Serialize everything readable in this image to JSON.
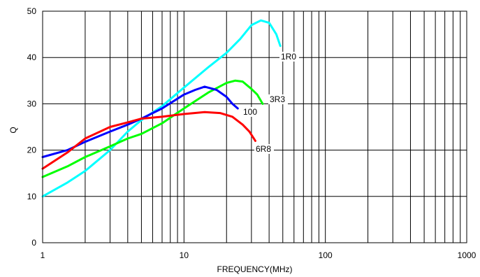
{
  "chart_data": {
    "type": "line",
    "xlabel": "FREQUENCY(MHz)",
    "ylabel": "Q",
    "xscale": "log",
    "xlim": [
      1,
      1000
    ],
    "ylim": [
      0,
      50
    ],
    "x_ticks": [
      "1",
      "10",
      "100",
      "1000"
    ],
    "y_ticks": [
      "0",
      "10",
      "20",
      "30",
      "40",
      "50"
    ],
    "grid": true,
    "series": [
      {
        "name": "1R0",
        "color": "#00ffff",
        "points": [
          [
            1,
            10
          ],
          [
            1.5,
            13
          ],
          [
            2,
            15.5
          ],
          [
            3,
            20
          ],
          [
            4,
            24
          ],
          [
            5,
            26.5
          ],
          [
            7,
            29.5
          ],
          [
            10,
            33.5
          ],
          [
            15,
            38
          ],
          [
            20,
            41
          ],
          [
            25,
            44
          ],
          [
            30,
            47
          ],
          [
            35,
            48
          ],
          [
            40,
            47.5
          ],
          [
            45,
            45
          ],
          [
            48,
            42.5
          ]
        ]
      },
      {
        "name": "3R3",
        "color": "#00ff00",
        "points": [
          [
            1,
            14.2
          ],
          [
            1.5,
            16.5
          ],
          [
            2,
            18.5
          ],
          [
            3,
            20.8
          ],
          [
            4,
            22.5
          ],
          [
            5,
            23.5
          ],
          [
            7,
            25.8
          ],
          [
            10,
            29
          ],
          [
            15,
            32.5
          ],
          [
            20,
            34.5
          ],
          [
            23,
            35
          ],
          [
            26,
            34.8
          ],
          [
            30,
            33.2
          ],
          [
            33,
            32
          ],
          [
            36,
            30
          ]
        ]
      },
      {
        "name": "100",
        "color": "#0000ff",
        "points": [
          [
            1,
            18.5
          ],
          [
            1.5,
            20
          ],
          [
            2,
            21.8
          ],
          [
            3,
            24
          ],
          [
            4,
            25.5
          ],
          [
            5,
            26.8
          ],
          [
            7,
            29
          ],
          [
            10,
            32
          ],
          [
            12,
            33
          ],
          [
            14,
            33.7
          ],
          [
            17,
            33
          ],
          [
            20,
            31.5
          ],
          [
            22,
            30
          ],
          [
            24,
            29
          ]
        ]
      },
      {
        "name": "6R8",
        "color": "#ff0000",
        "points": [
          [
            1,
            16
          ],
          [
            1.5,
            19.5
          ],
          [
            2,
            22.5
          ],
          [
            3,
            25
          ],
          [
            4,
            26
          ],
          [
            5,
            26.8
          ],
          [
            7,
            27.2
          ],
          [
            10,
            27.8
          ],
          [
            14,
            28.2
          ],
          [
            18,
            28
          ],
          [
            22,
            27.2
          ],
          [
            26,
            25.5
          ],
          [
            29,
            24
          ],
          [
            32,
            22
          ]
        ]
      }
    ]
  }
}
